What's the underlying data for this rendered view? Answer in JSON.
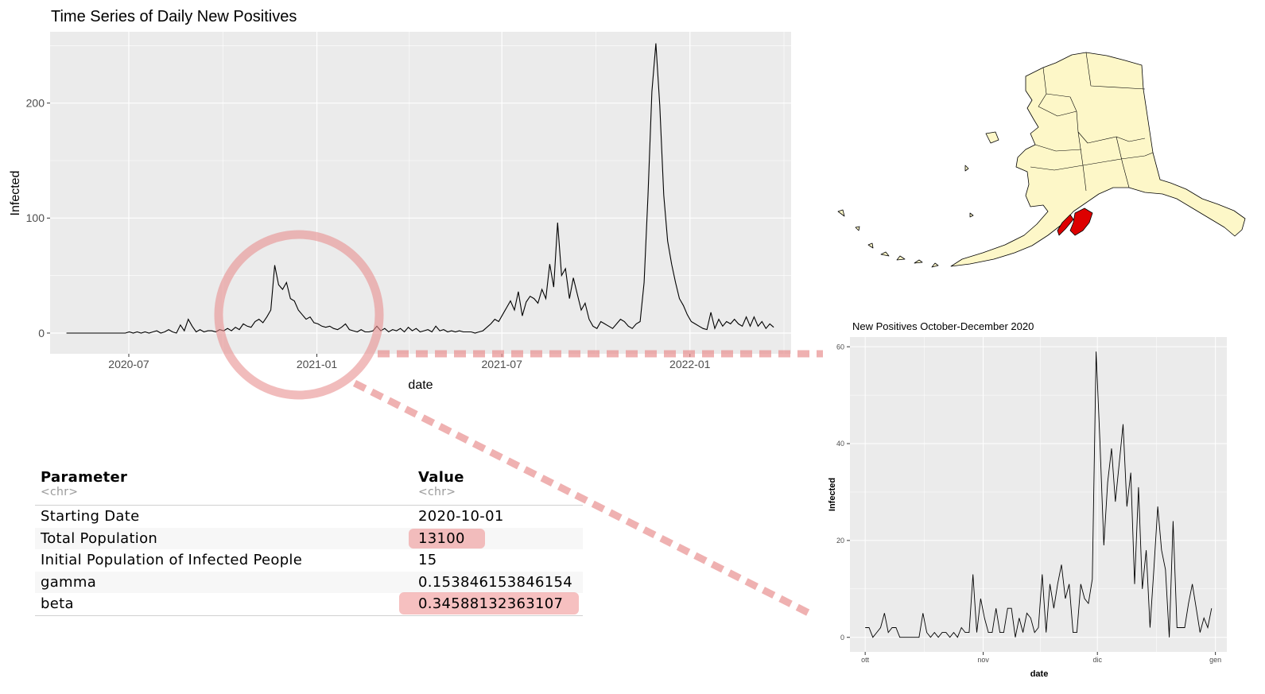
{
  "colors": {
    "panel": "#ebebeb",
    "grid_major": "#ffffff",
    "line": "#000000",
    "highlight": "#e89090",
    "map_fill": "#fdf7c8",
    "map_region": "#dd0000"
  },
  "chart_data": [
    {
      "type": "line",
      "title": "Time Series of Daily New Positives",
      "xlabel": "date",
      "ylabel": "Infected",
      "x_ticks": [
        "2020-07",
        "2021-01",
        "2021-07",
        "2022-01"
      ],
      "y_ticks": [
        "0",
        "100",
        "200"
      ],
      "xlim": [
        "2020-04-15",
        "2022-04-10"
      ],
      "ylim": [
        -18,
        262
      ],
      "grid": true,
      "x_start": "2020-05-01",
      "x_end": "2022-03-24",
      "series": [
        {
          "stride_days": 4,
          "values": [
            0,
            0,
            0,
            0,
            0,
            0,
            0,
            0,
            0,
            0,
            0,
            0,
            0,
            0,
            0,
            0,
            1,
            0,
            1,
            0,
            1,
            0,
            1,
            2,
            0,
            1,
            3,
            1,
            0,
            7,
            2,
            12,
            6,
            1,
            3,
            1,
            2,
            2,
            1,
            3,
            2,
            4,
            2,
            5,
            3,
            8,
            6,
            5,
            10,
            12,
            9,
            14,
            20,
            59,
            42,
            38,
            44,
            30,
            28,
            20,
            16,
            12,
            14,
            9,
            8,
            6,
            5,
            6,
            4,
            3,
            5,
            8,
            3,
            2,
            1,
            3,
            1,
            1,
            2,
            6,
            2,
            4,
            1,
            3,
            2,
            4,
            1,
            5,
            2,
            4,
            1,
            2,
            3,
            1,
            6,
            2,
            3,
            1,
            2,
            1,
            2,
            1,
            1,
            1,
            0,
            1,
            2,
            5,
            8,
            12,
            10,
            16,
            22,
            28,
            20,
            36,
            15,
            27,
            32,
            30,
            26,
            38,
            30,
            60,
            40,
            96,
            50,
            56,
            30,
            48,
            34,
            20,
            26,
            12,
            6,
            4,
            10,
            8,
            6,
            4,
            8,
            12,
            10,
            6,
            4,
            8,
            10,
            44,
            120,
            210,
            252,
            198,
            120,
            80,
            60,
            44,
            30,
            24,
            16,
            10,
            8,
            6,
            4,
            3,
            18,
            4,
            12,
            6,
            10,
            8,
            12,
            8,
            6,
            14,
            6,
            14,
            6,
            10,
            4,
            8,
            5
          ]
        }
      ]
    },
    {
      "type": "line",
      "title": "New Positives October-December 2020",
      "xlabel": "date",
      "ylabel": "Infected",
      "x_ticks": [
        "ott",
        "nov",
        "dic",
        "gen"
      ],
      "y_ticks": [
        "0",
        "20",
        "40",
        "60"
      ],
      "xlim": [
        "2020-09-27",
        "2021-01-04"
      ],
      "ylim": [
        -3,
        62
      ],
      "grid": true,
      "x_start": "2020-10-01",
      "x_end": "2020-12-31",
      "series": [
        {
          "values": [
            2,
            2,
            0,
            1,
            2,
            5,
            1,
            2,
            2,
            0,
            0,
            0,
            0,
            0,
            0,
            5,
            1,
            0,
            1,
            0,
            1,
            1,
            0,
            1,
            0,
            2,
            1,
            1,
            13,
            1,
            8,
            4,
            1,
            1,
            6,
            1,
            1,
            6,
            6,
            0,
            4,
            1,
            5,
            4,
            1,
            2,
            13,
            1,
            11,
            6,
            11,
            15,
            8,
            11,
            1,
            1,
            11,
            8,
            7,
            12,
            59,
            40,
            19,
            32,
            39,
            28,
            36,
            44,
            27,
            34,
            11,
            31,
            10,
            18,
            2,
            14,
            27,
            18,
            14,
            0,
            24,
            2,
            2,
            2,
            7,
            11,
            6,
            1,
            4,
            2,
            6
          ]
        }
      ]
    }
  ],
  "table": {
    "headers": [
      "Parameter",
      "Value"
    ],
    "types": [
      "<chr>",
      "<chr>"
    ],
    "rows": [
      [
        "Starting Date",
        "2020-10-01"
      ],
      [
        "Total Population",
        "13100"
      ],
      [
        "Initial Population of Infected People",
        "15"
      ],
      [
        "gamma",
        "0.153846153846154"
      ],
      [
        "beta",
        "0.34588132363107"
      ]
    ],
    "highlighted_values": [
      "13100",
      "0.34588132363107"
    ]
  },
  "map": {
    "region": "Alaska",
    "highlighted_area": "red"
  }
}
